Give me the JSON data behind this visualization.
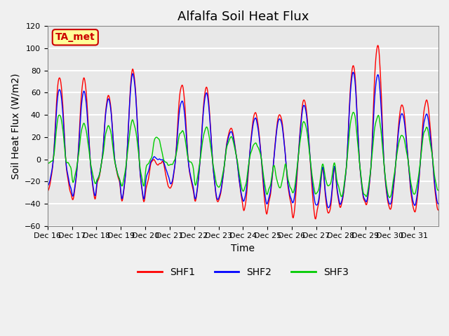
{
  "title": "Alfalfa Soil Heat Flux",
  "ylabel": "Soil Heat Flux (W/m2)",
  "xlabel": "Time",
  "ylim": [
    -60,
    120
  ],
  "yticks": [
    -60,
    -40,
    -20,
    0,
    20,
    40,
    60,
    80,
    100,
    120
  ],
  "xtick_labels": [
    "Dec 16",
    "Dec 17",
    "Dec 18",
    "Dec 19",
    "Dec 20",
    "Dec 21",
    "Dec 22",
    "Dec 23",
    "Dec 24",
    "Dec 25",
    "Dec 26",
    "Dec 27",
    "Dec 28",
    "Dec 29",
    "Dec 30",
    "Dec 31"
  ],
  "n_days": 16,
  "start_day": 16,
  "colors": {
    "SHF1": "#ff0000",
    "SHF2": "#0000ff",
    "SHF3": "#00cc00"
  },
  "annotation_text": "TA_met",
  "annotation_color": "#cc0000",
  "annotation_bg": "#ffff99",
  "plot_bg": "#e8e8e8",
  "grid_color": "#ffffff",
  "title_fontsize": 13,
  "label_fontsize": 10,
  "tick_fontsize": 8,
  "legend_fontsize": 10
}
